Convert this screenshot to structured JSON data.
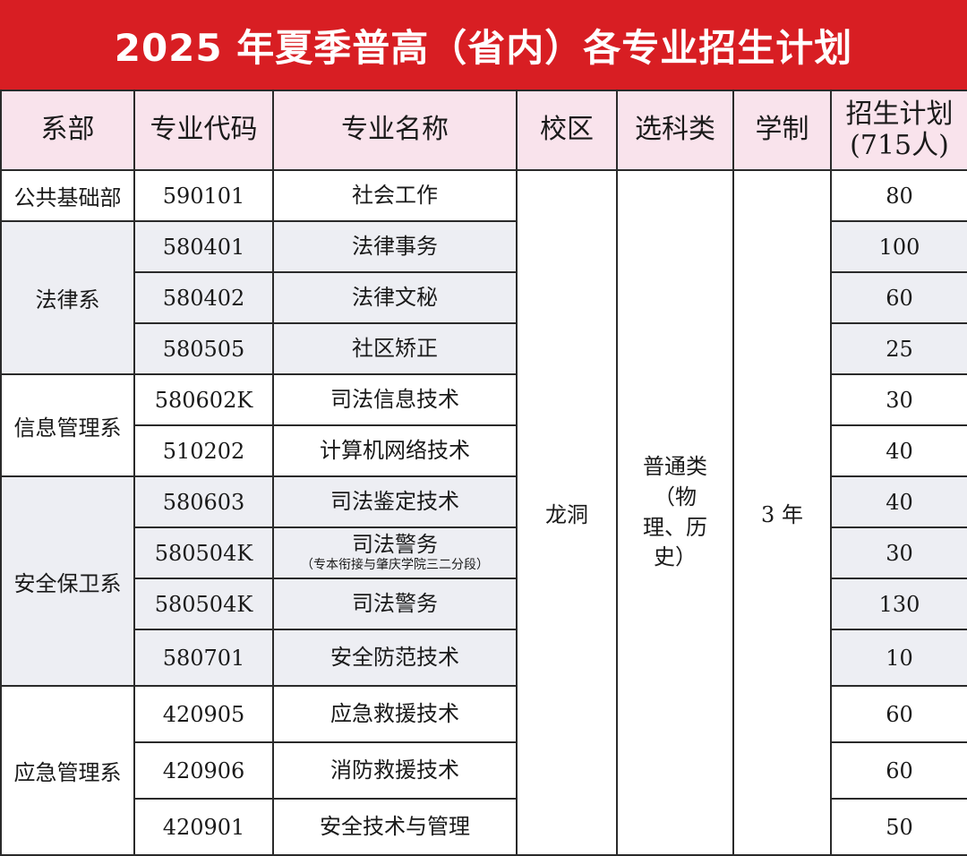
{
  "title": "2025 年夏季普高（省内）各专业招生计划",
  "headers": {
    "dept": "系部",
    "code": "专业代码",
    "name": "专业名称",
    "campus": "校区",
    "subject": "选科类",
    "duration": "学制",
    "plan": "招生计划",
    "plan_total": "(715人)"
  },
  "departments": [
    "公共基础部",
    "法律系",
    "信息管理系",
    "安全保卫系",
    "应急管理系"
  ],
  "campus": "龙洞",
  "subject": "普通类（物理、历史）",
  "duration": "3 年",
  "rows": [
    {
      "code": "590101",
      "name": "社会工作",
      "note": "",
      "plan": "80"
    },
    {
      "code": "580401",
      "name": "法律事务",
      "note": "",
      "plan": "100"
    },
    {
      "code": "580402",
      "name": "法律文秘",
      "note": "",
      "plan": "60"
    },
    {
      "code": "580505",
      "name": "社区矫正",
      "note": "",
      "plan": "25"
    },
    {
      "code": "580602K",
      "name": "司法信息技术",
      "note": "",
      "plan": "30"
    },
    {
      "code": "510202",
      "name": "计算机网络技术",
      "note": "",
      "plan": "40"
    },
    {
      "code": "580603",
      "name": "司法鉴定技术",
      "note": "",
      "plan": "40"
    },
    {
      "code": "580504K",
      "name": "司法警务",
      "note": "（专本衔接与肇庆学院三二分段）",
      "plan": "30"
    },
    {
      "code": "580504K",
      "name": "司法警务",
      "note": "",
      "plan": "130"
    },
    {
      "code": "580701",
      "name": "安全防范技术",
      "note": "",
      "plan": "10"
    },
    {
      "code": "420905",
      "name": "应急救援技术",
      "note": "",
      "plan": "60"
    },
    {
      "code": "420906",
      "name": "消防救援技术",
      "note": "",
      "plan": "60"
    },
    {
      "code": "420901",
      "name": "安全技术与管理",
      "note": "",
      "plan": "50"
    }
  ]
}
